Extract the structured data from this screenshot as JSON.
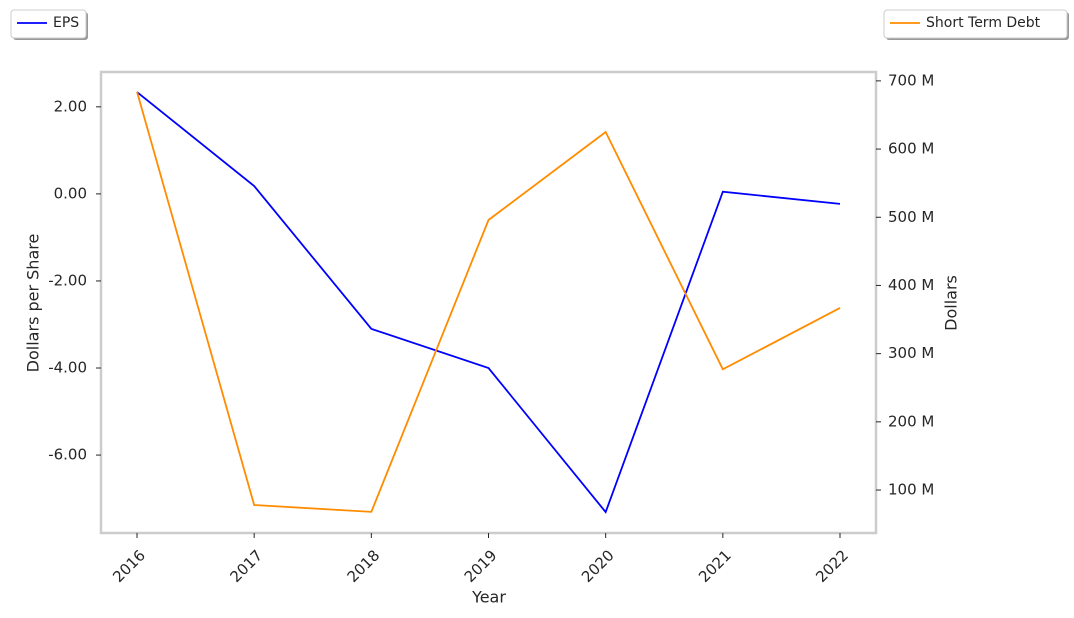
{
  "chart_data": {
    "type": "line",
    "xlabel": "Year",
    "ylabel": "Dollars per Share",
    "y2label": "Dollars",
    "categories": [
      "2016",
      "2017",
      "2018",
      "2019",
      "2020",
      "2021",
      "2022"
    ],
    "series": [
      {
        "name": "EPS",
        "color": "#0000ff",
        "values": [
          2.34,
          0.18,
          -3.1,
          -4.0,
          -7.31,
          0.05,
          -0.23
        ],
        "legend_loc": "upper left"
      },
      {
        "name": "Short Term Debt",
        "color": "#ff8c00",
        "axis": "y2",
        "values": [
          684000000,
          78000000,
          68000000,
          496000000,
          625000000,
          277000000,
          367000000
        ],
        "legend_loc": "upper right"
      }
    ],
    "ylim": [
      -7.79,
      2.8
    ],
    "yticks": [
      {
        "value": -6,
        "label": "-6.00"
      },
      {
        "value": -4,
        "label": "-4.00"
      },
      {
        "value": -2,
        "label": "-2.00"
      },
      {
        "value": 0,
        "label": "0.00"
      },
      {
        "value": 2,
        "label": "2.00"
      }
    ],
    "y2lim": [
      37000000,
      713000000
    ],
    "y2ticks": [
      {
        "value": 100000000,
        "label": "100 M"
      },
      {
        "value": 200000000,
        "label": "200 M"
      },
      {
        "value": 300000000,
        "label": "300 M"
      },
      {
        "value": 400000000,
        "label": "400 M"
      },
      {
        "value": 500000000,
        "label": "500 M"
      },
      {
        "value": 600000000,
        "label": "600 M"
      },
      {
        "value": 700000000,
        "label": "700 M"
      }
    ],
    "grid": false
  }
}
